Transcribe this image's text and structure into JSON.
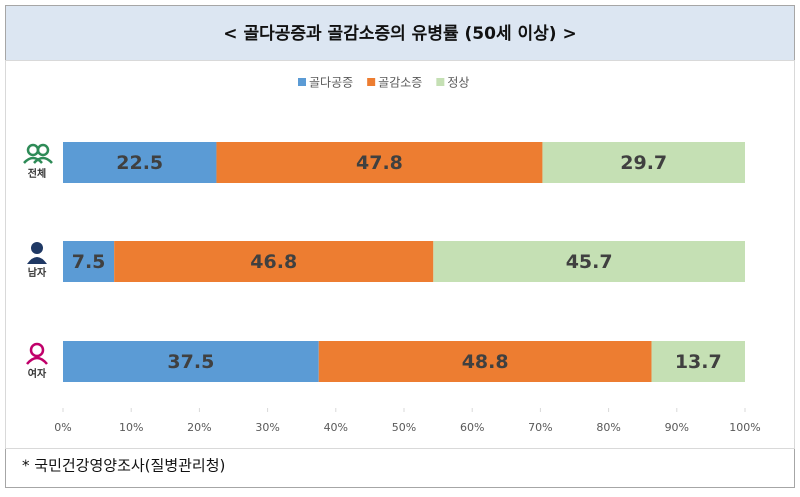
{
  "chart_data": {
    "type": "stacked-bar-horizontal",
    "title": "< 골다공증과 골감소증의 유병률 (50세 이상) >",
    "categories": [
      "전체",
      "남자",
      "여자"
    ],
    "series": [
      {
        "name": "골다공증",
        "color": "#5b9bd5",
        "values": [
          22.5,
          7.5,
          37.5
        ]
      },
      {
        "name": "골감소증",
        "color": "#ed7d31",
        "values": [
          47.8,
          46.8,
          48.8
        ]
      },
      {
        "name": "정상",
        "color": "#c5e0b4",
        "values": [
          29.7,
          45.7,
          13.7
        ]
      }
    ],
    "xlim": [
      0,
      100
    ],
    "xticks": [
      {
        "value": 0,
        "label": "0%"
      },
      {
        "value": 10,
        "label": "10%"
      },
      {
        "value": 20,
        "label": "20%"
      },
      {
        "value": 30,
        "label": "30%"
      },
      {
        "value": 40,
        "label": "40%"
      },
      {
        "value": 50,
        "label": "50%"
      },
      {
        "value": 60,
        "label": "60%"
      },
      {
        "value": 70,
        "label": "70%"
      },
      {
        "value": 80,
        "label": "80%"
      },
      {
        "value": 90,
        "label": "90%"
      },
      {
        "value": 100,
        "label": "100%"
      }
    ],
    "legend": "top",
    "source": "* 국민건강영양조사(질병관리청)"
  }
}
